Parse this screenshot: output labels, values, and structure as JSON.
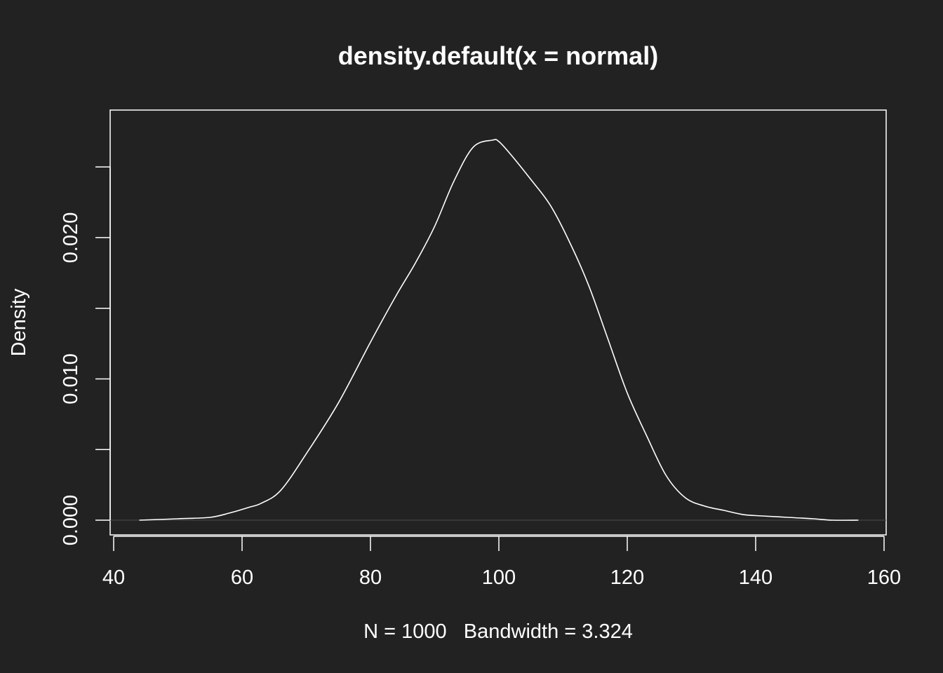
{
  "chart_data": {
    "type": "line",
    "title": "density.default(x = normal)",
    "xlabel": "N = 1000   Bandwidth = 3.324",
    "ylabel": "Density",
    "xlim": [
      40,
      160
    ],
    "ylim": [
      0,
      0.026
    ],
    "x_ticks": [
      "40",
      "60",
      "80",
      "100",
      "120",
      "140",
      "160"
    ],
    "y_ticks": [
      "0.000",
      "",
      "0.010",
      "",
      "0.020",
      ""
    ],
    "grid": false,
    "series": [
      {
        "x": [
          44,
          50,
          55,
          58,
          61,
          63,
          66,
          70,
          75,
          80,
          84,
          87,
          90,
          93,
          96,
          99,
          100,
          102,
          105,
          108,
          111,
          114,
          117,
          120,
          123,
          126,
          129,
          132,
          135,
          138,
          141,
          145,
          149,
          152,
          156
        ],
        "y": [
          0.0,
          0.0001,
          0.0002,
          0.0005,
          0.0009,
          0.0012,
          0.0021,
          0.0047,
          0.0083,
          0.0126,
          0.0159,
          0.0182,
          0.0208,
          0.024,
          0.0264,
          0.0269,
          0.0268,
          0.0258,
          0.0241,
          0.0223,
          0.0197,
          0.0166,
          0.0128,
          0.009,
          0.006,
          0.0032,
          0.0016,
          0.001,
          0.0007,
          0.0004,
          0.0003,
          0.0002,
          0.0001,
          0.0,
          0.0
        ],
        "color": "#ffffff"
      }
    ],
    "colors": {
      "background": "#222222",
      "foreground": "#ffffff",
      "baseline": "#444444"
    }
  }
}
